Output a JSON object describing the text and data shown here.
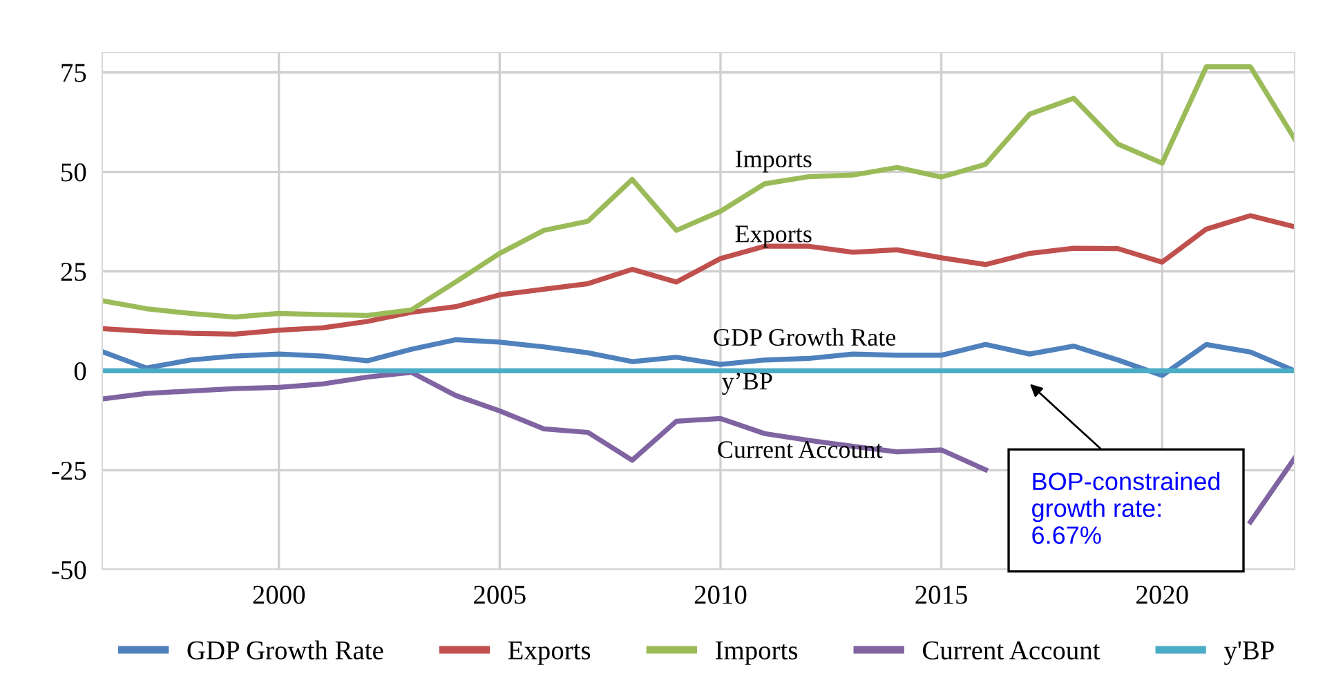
{
  "chart_data": {
    "type": "line",
    "x": [
      1996,
      1997,
      1998,
      1999,
      2000,
      2001,
      2002,
      2003,
      2004,
      2005,
      2006,
      2007,
      2008,
      2009,
      2010,
      2011,
      2012,
      2013,
      2014,
      2015,
      2016,
      2017,
      2018,
      2019,
      2020,
      2021,
      2022,
      2023
    ],
    "series": [
      {
        "name": "GDP Growth Rate",
        "color": "#4f81bd",
        "values": [
          4.8,
          0.7,
          2.7,
          3.7,
          4.2,
          3.7,
          2.5,
          5.4,
          7.8,
          7.2,
          6.0,
          4.5,
          2.3,
          3.4,
          1.6,
          2.7,
          3.1,
          4.2,
          3.9,
          3.9,
          6.6,
          4.2,
          6.2,
          2.7,
          -1.2,
          6.6,
          4.7,
          0
        ]
      },
      {
        "name": "Exports",
        "color": "#c0504d",
        "values": [
          10.6,
          9.9,
          9.4,
          9.2,
          10.2,
          10.8,
          12.4,
          14.7,
          16.1,
          19.1,
          20.5,
          21.9,
          25.5,
          22.3,
          28.2,
          31.3,
          31.3,
          29.8,
          30.4,
          28.4,
          26.7,
          29.5,
          30.8,
          30.7,
          27.3,
          35.6,
          39.0,
          36.2
        ]
      },
      {
        "name": "Imports",
        "color": "#9bbb59",
        "values": [
          17.6,
          15.6,
          14.4,
          13.5,
          14.4,
          14.1,
          13.9,
          15.3,
          22.3,
          29.5,
          35.3,
          37.6,
          48.1,
          35.3,
          40.1,
          47.0,
          48.8,
          49.2,
          51.1,
          48.7,
          51.9,
          64.5,
          68.5,
          57,
          52.2,
          76.4,
          76.4,
          58.3
        ]
      },
      {
        "name": "Current Account",
        "color": "#8064a2",
        "values": [
          -7.1,
          -5.7,
          -5.1,
          -4.5,
          -4.2,
          -3.3,
          -1.6,
          -0.4,
          -6.2,
          -10.1,
          -14.6,
          -15.5,
          -22.5,
          -12.7,
          -12.0,
          -15.8,
          -17.5,
          -19.0,
          -20.4,
          -19.9,
          -24.9,
          null,
          null,
          null,
          null,
          null,
          -38,
          -22
        ]
      },
      {
        "name": "y'BP",
        "color": "#4bacc6",
        "values": [
          0,
          0,
          0,
          0,
          0,
          0,
          0,
          0,
          0,
          0,
          0,
          0,
          0,
          0,
          0,
          0,
          0,
          0,
          0,
          0,
          0,
          0,
          0,
          0,
          0,
          0,
          0,
          0
        ]
      }
    ],
    "xlim": [
      1996,
      2023
    ],
    "xticks": [
      2000,
      2005,
      2010,
      2015,
      2020
    ],
    "ylim": [
      -50,
      80
    ],
    "yticks": [
      -50,
      -25,
      0,
      25,
      50,
      75
    ],
    "grid": true,
    "legend": "bottom",
    "marker": "none",
    "line_style": "solid",
    "annotations": [
      "Imports",
      "Exports",
      "GDP Growth Rate",
      "y’BP",
      "Current Account",
      "BOP-constrained\ngrowth rate:\n6.67%"
    ]
  }
}
